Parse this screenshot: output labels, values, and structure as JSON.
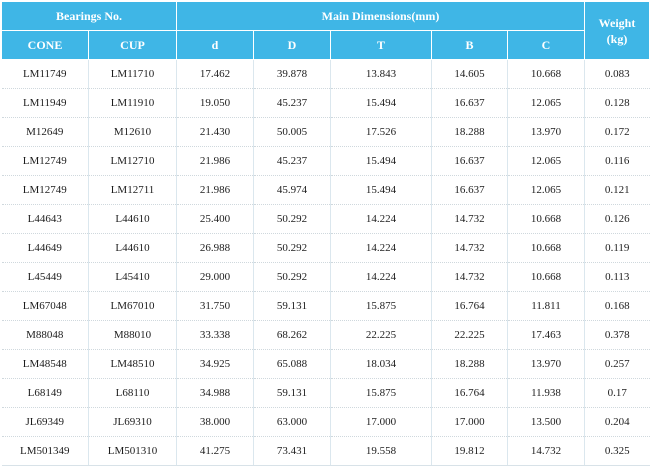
{
  "header": {
    "bearings_no": "Bearings No.",
    "main_dimensions": "Main Dimensions(mm)",
    "weight": "Weight",
    "weight_unit": "(kg)",
    "cone": "CONE",
    "cup": "CUP",
    "d": "d",
    "D": "D",
    "T": "T",
    "B": "B",
    "C": "C"
  },
  "rows": [
    [
      "LM11749",
      "LM11710",
      "17.462",
      "39.878",
      "13.843",
      "14.605",
      "10.668",
      "0.083"
    ],
    [
      "LM11949",
      "LM11910",
      "19.050",
      "45.237",
      "15.494",
      "16.637",
      "12.065",
      "0.128"
    ],
    [
      "M12649",
      "M12610",
      "21.430",
      "50.005",
      "17.526",
      "18.288",
      "13.970",
      "0.172"
    ],
    [
      "LM12749",
      "LM12710",
      "21.986",
      "45.237",
      "15.494",
      "16.637",
      "12.065",
      "0.116"
    ],
    [
      "LM12749",
      "LM12711",
      "21.986",
      "45.974",
      "15.494",
      "16.637",
      "12.065",
      "0.121"
    ],
    [
      "L44643",
      "L44610",
      "25.400",
      "50.292",
      "14.224",
      "14.732",
      "10.668",
      "0.126"
    ],
    [
      "L44649",
      "L44610",
      "26.988",
      "50.292",
      "14.224",
      "14.732",
      "10.668",
      "0.119"
    ],
    [
      "L45449",
      "L45410",
      "29.000",
      "50.292",
      "14.224",
      "14.732",
      "10.668",
      "0.113"
    ],
    [
      "LM67048",
      "LM67010",
      "31.750",
      "59.131",
      "15.875",
      "16.764",
      "11.811",
      "0.168"
    ],
    [
      "M88048",
      "M88010",
      "33.338",
      "68.262",
      "22.225",
      "22.225",
      "17.463",
      "0.378"
    ],
    [
      "LM48548",
      "LM48510",
      "34.925",
      "65.088",
      "18.034",
      "18.288",
      "13.970",
      "0.257"
    ],
    [
      "L68149",
      "L68110",
      "34.988",
      "59.131",
      "15.875",
      "16.764",
      "11.938",
      "0.17"
    ],
    [
      "JL69349",
      "JL69310",
      "38.000",
      "63.000",
      "17.000",
      "17.000",
      "13.500",
      "0.204"
    ],
    [
      "LM501349",
      "LM501310",
      "41.275",
      "73.431",
      "19.558",
      "19.812",
      "14.732",
      "0.325"
    ]
  ]
}
